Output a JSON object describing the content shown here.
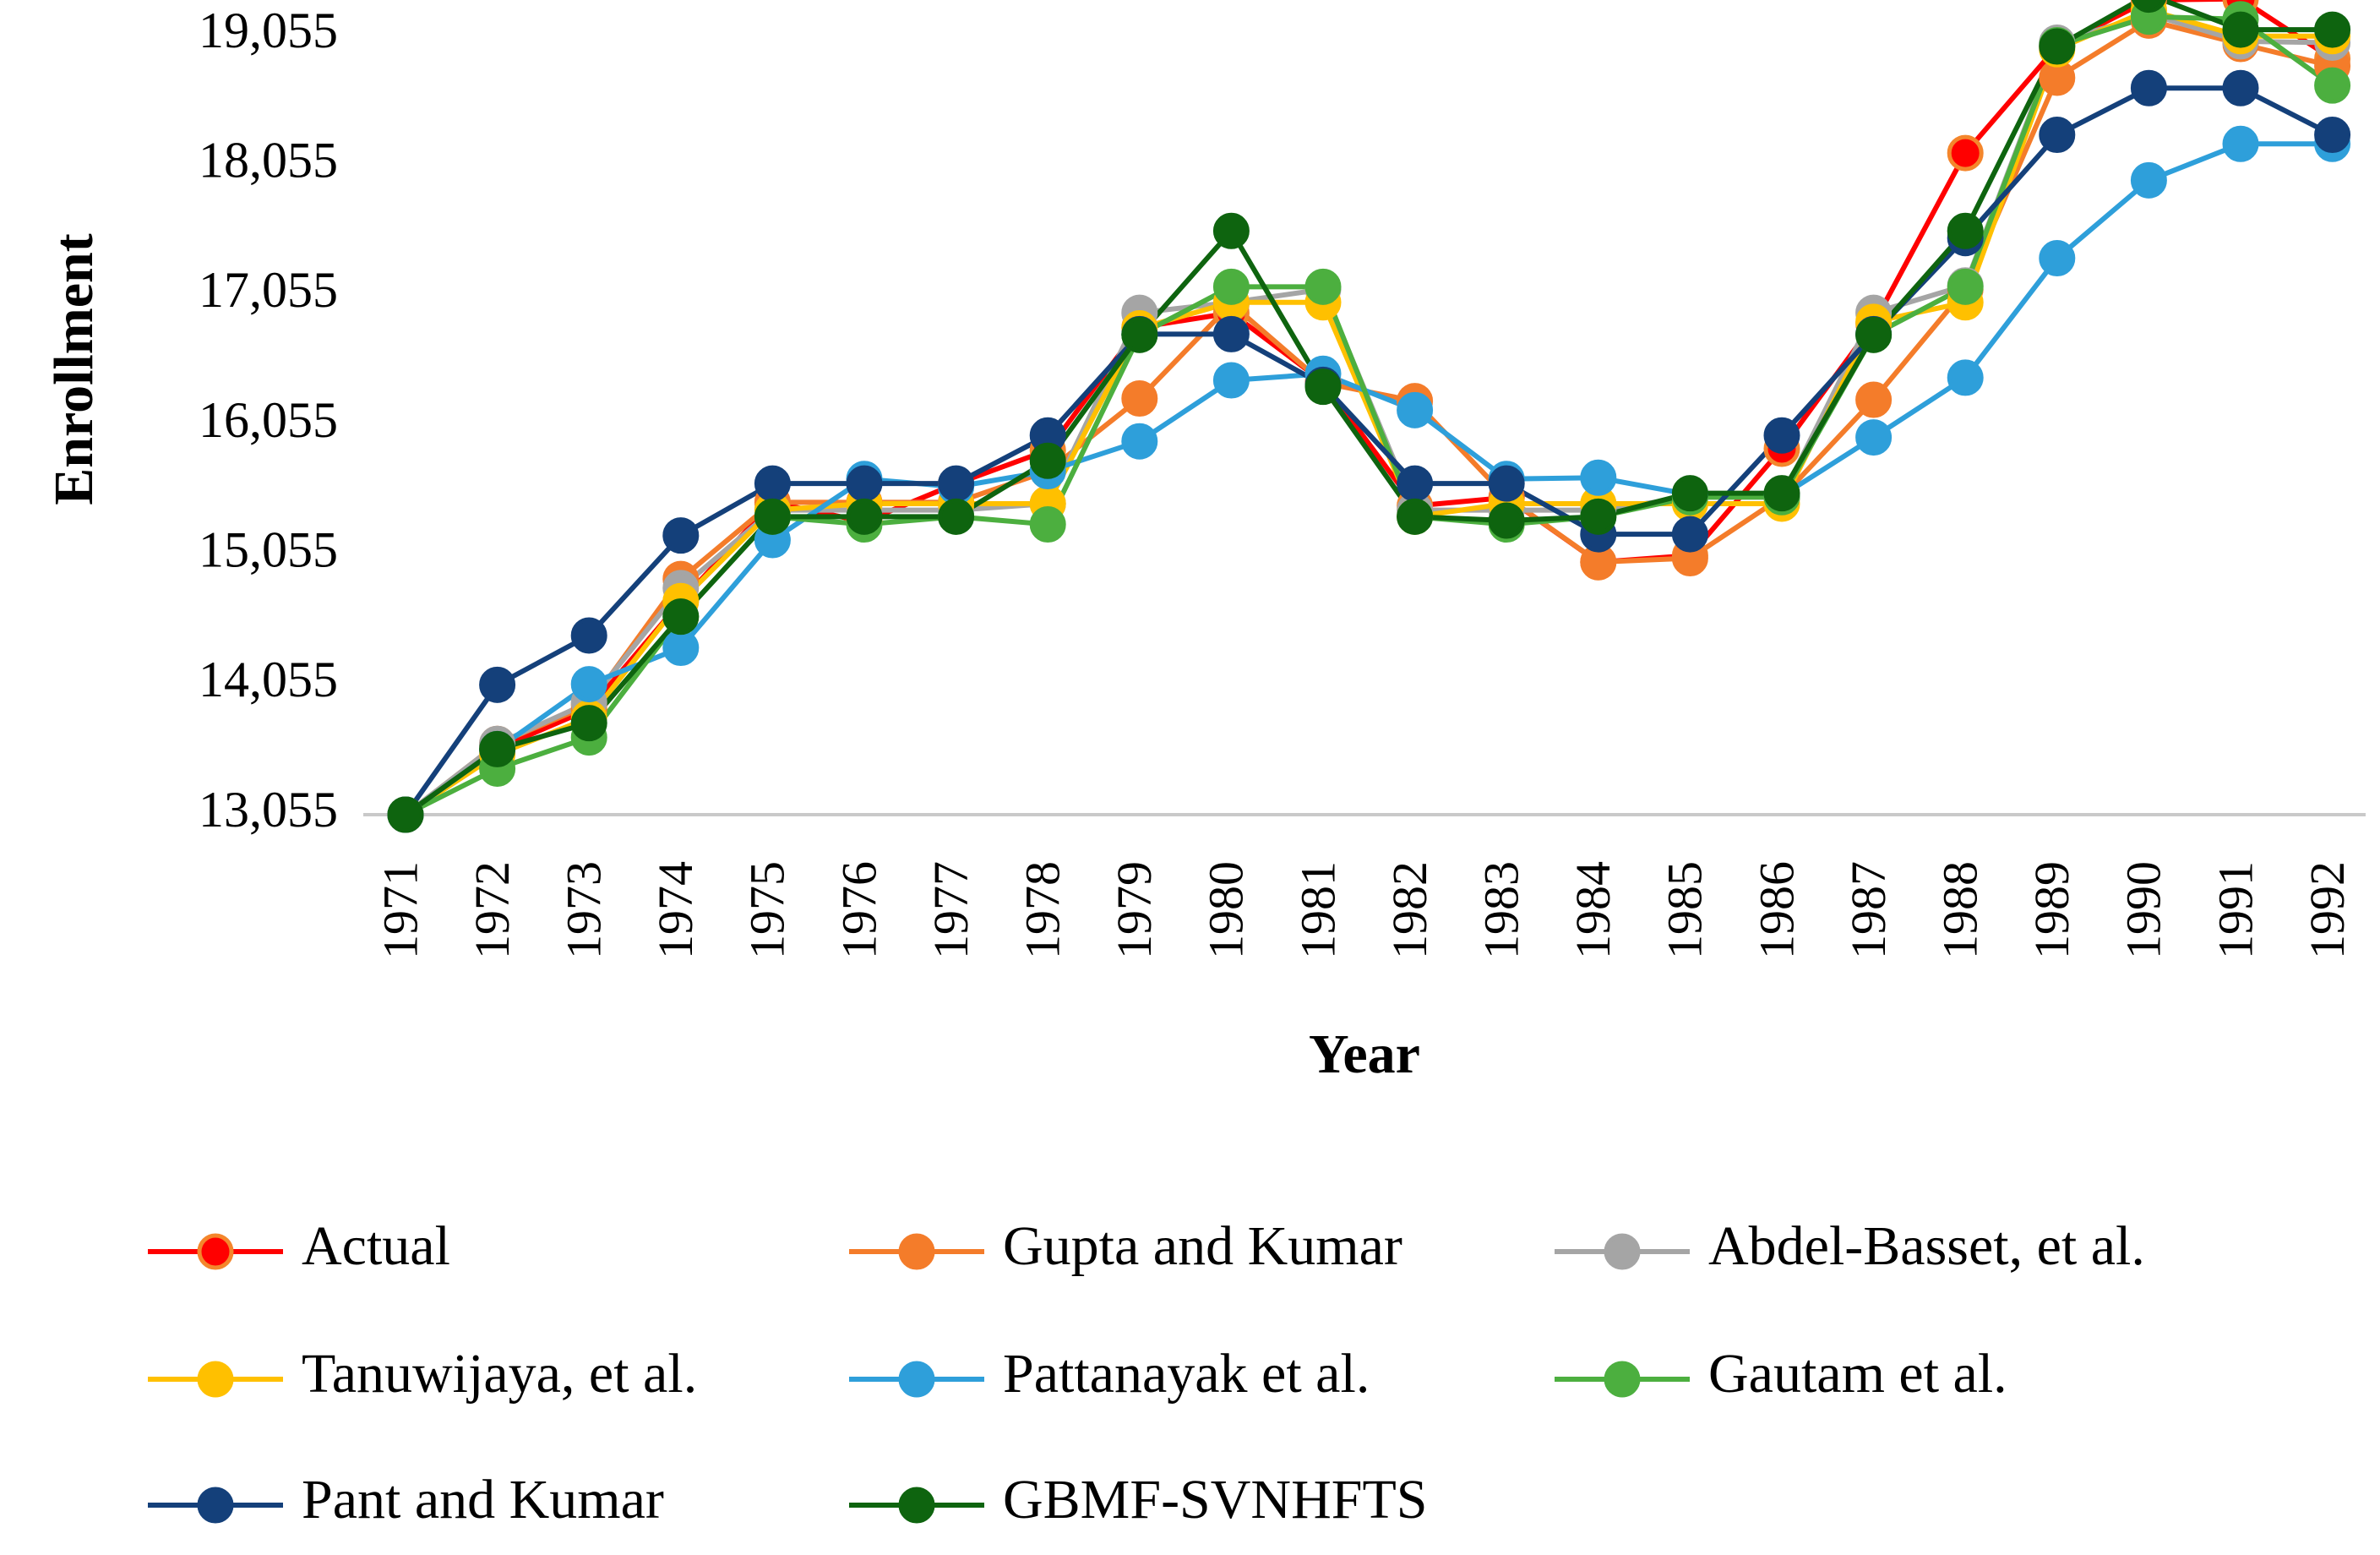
{
  "chart_data": {
    "type": "line",
    "title": "",
    "xlabel": "Year",
    "ylabel": "Enrollment",
    "ylim": [
      13055,
      19055
    ],
    "yticks": [
      "13,055",
      "14,055",
      "15,055",
      "16,055",
      "17,055",
      "18,055",
      "19,055"
    ],
    "ytick_values": [
      13055,
      14055,
      15055,
      16055,
      17055,
      18055,
      19055
    ],
    "grid": false,
    "legend_position": "bottom",
    "categories": [
      "1971",
      "1972",
      "1973",
      "1974",
      "1975",
      "1976",
      "1977",
      "1978",
      "1979",
      "1980",
      "1981",
      "1982",
      "1983",
      "1984",
      "1985",
      "1986",
      "1987",
      "1988",
      "1989",
      "1990",
      "1991",
      "1992"
    ],
    "series": [
      {
        "name": "Actual",
        "color": "#ff0000",
        "marker_fill": "#ff0000",
        "marker_stroke": "#f4862c",
        "values": [
          13055,
          13563,
          13867,
          14696,
          15460,
          15311,
          15603,
          15861,
          16807,
          16919,
          16388,
          15433,
          15497,
          14999,
          15051,
          15873,
          16834,
          18150,
          18970,
          19328,
          19337,
          18876
        ]
      },
      {
        "name": "Gupta and Kumar",
        "color": "#f47c2a",
        "marker_fill": "#f47c2a",
        "marker_stroke": "#f47c2a",
        "values": [
          13055,
          13600,
          13900,
          14870,
          15460,
          15460,
          15460,
          15700,
          16260,
          16990,
          16380,
          16240,
          15500,
          15000,
          15030,
          15500,
          16250,
          17100,
          18730,
          19170,
          18990,
          18820
        ]
      },
      {
        "name": "Abdel-Basset, et al.",
        "color": "#a5a5a5",
        "marker_fill": "#a5a5a5",
        "marker_stroke": "#a5a5a5",
        "values": [
          13055,
          13600,
          13920,
          14800,
          15400,
          15400,
          15400,
          15450,
          16920,
          17000,
          17100,
          15400,
          15400,
          15400,
          15500,
          15500,
          16920,
          17130,
          19000,
          19220,
          19010,
          19000
        ]
      },
      {
        "name": "Tanuwijaya, et al.",
        "color": "#ffc000",
        "marker_fill": "#ffc000",
        "marker_stroke": "#ffc000",
        "values": [
          13055,
          13520,
          13800,
          14700,
          15400,
          15450,
          15450,
          15450,
          16800,
          17000,
          17000,
          15350,
          15450,
          15450,
          15450,
          15450,
          16850,
          17000,
          18950,
          19250,
          19050,
          19050
        ]
      },
      {
        "name": "Pattanayak et al.",
        "color": "#2e9fda",
        "marker_fill": "#2e9fda",
        "marker_stroke": "#2e9fda",
        "values": [
          13055,
          13560,
          14060,
          14340,
          15170,
          15640,
          15580,
          15700,
          15930,
          16400,
          16450,
          16170,
          15640,
          15650,
          15520,
          15510,
          15960,
          16420,
          17340,
          17940,
          18220,
          18220
        ]
      },
      {
        "name": "Gautam et al.",
        "color": "#4caf3f",
        "marker_fill": "#4caf3f",
        "marker_stroke": "#4caf3f",
        "values": [
          13055,
          13410,
          13650,
          14580,
          15350,
          15290,
          15350,
          15290,
          16750,
          17120,
          17120,
          15350,
          15290,
          15350,
          15500,
          15500,
          16750,
          17120,
          18980,
          19200,
          19180,
          18670
        ]
      },
      {
        "name": "Pant and Kumar",
        "color": "#14407a",
        "marker_fill": "#14407a",
        "marker_stroke": "#14407a",
        "values": [
          13055,
          14055,
          14435,
          15205,
          15605,
          15605,
          15605,
          15975,
          16755,
          16755,
          16365,
          15605,
          15605,
          15215,
          15215,
          15975,
          16755,
          17495,
          18290,
          18650,
          18650,
          18290
        ]
      },
      {
        "name": "GBMF-SVNHFTS",
        "color": "#0e640f",
        "marker_fill": "#0e640f",
        "marker_stroke": "#0e640f",
        "values": [
          13055,
          13560,
          13760,
          14580,
          15350,
          15350,
          15350,
          15780,
          16750,
          17550,
          16350,
          15350,
          15320,
          15350,
          15530,
          15530,
          16750,
          17550,
          18970,
          19370,
          19100,
          19100
        ]
      }
    ]
  }
}
